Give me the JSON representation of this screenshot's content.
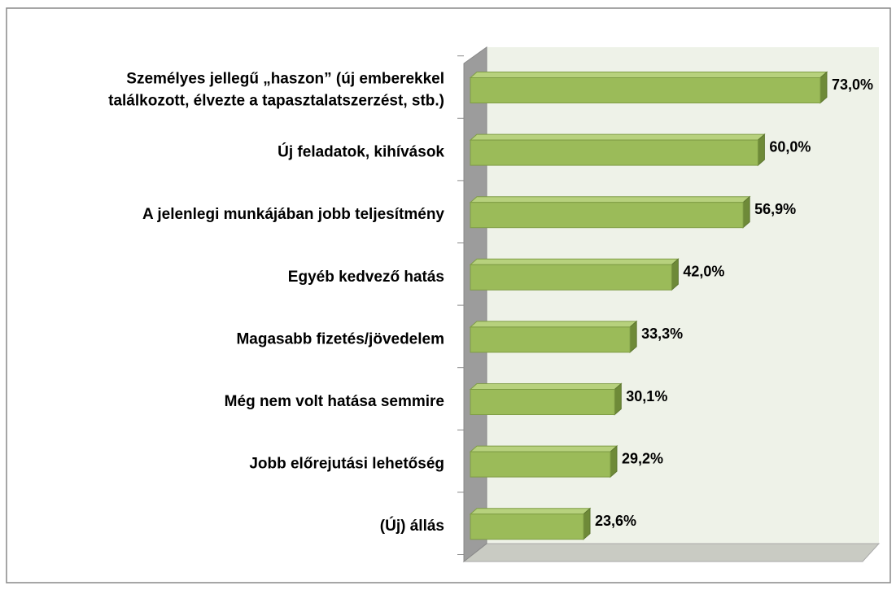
{
  "chart_data": {
    "type": "bar3d_horizontal",
    "categories": [
      "Személyes jellegű „haszon” (új emberekkel\ntalálkozott, élvezte a tapasztalatszerzést, stb.)",
      "Új feladatok, kihívások",
      "A jelenlegi munkájában jobb teljesítmény",
      "Egyéb kedvező hatás",
      "Magasabb fizetés/jövedelem",
      "Még nem volt hatása semmire",
      "Jobb előrejutási lehetőség",
      "(Új) állás"
    ],
    "values": [
      73.0,
      60.0,
      56.9,
      42.0,
      33.3,
      30.1,
      29.2,
      23.6
    ],
    "value_labels": [
      "73,0%",
      "60,0%",
      "56,9%",
      "42,0%",
      "33,3%",
      "30,1%",
      "29,2%",
      "23,6%"
    ],
    "color": "#9bbb59"
  }
}
